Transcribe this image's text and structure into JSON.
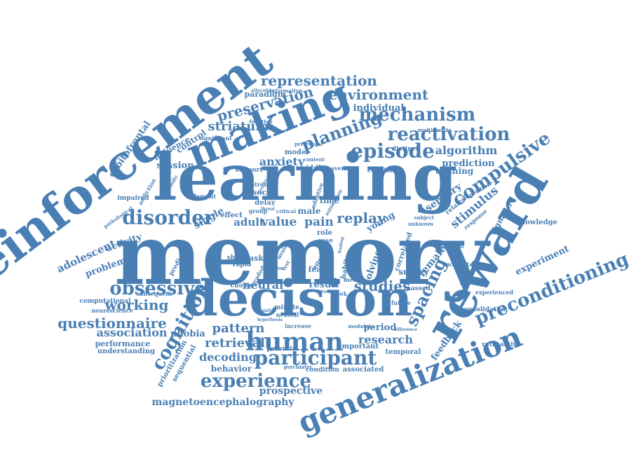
{
  "cloud": {
    "color": "#4a7fb4",
    "words": [
      {
        "text": "memory"
      },
      {
        "text": "learning"
      },
      {
        "text": "reinforcement"
      },
      {
        "text": "reward"
      },
      {
        "text": "decision"
      },
      {
        "text": "making"
      },
      {
        "text": "generalization"
      },
      {
        "text": "human"
      },
      {
        "text": "participant"
      },
      {
        "text": "episode"
      },
      {
        "text": "experience"
      },
      {
        "text": "obsessive"
      },
      {
        "text": "disorder"
      },
      {
        "text": "compulsive"
      },
      {
        "text": "preconditioning"
      },
      {
        "text": "cognition"
      },
      {
        "text": "spacing"
      },
      {
        "text": "reactivation"
      },
      {
        "text": "mechanism"
      },
      {
        "text": "planning"
      },
      {
        "text": "environment"
      },
      {
        "text": "representation"
      },
      {
        "text": "preservation"
      },
      {
        "text": "questionnaire"
      },
      {
        "text": "working"
      },
      {
        "text": "association"
      },
      {
        "text": "retrieval"
      },
      {
        "text": "pattern"
      },
      {
        "text": "decoding"
      },
      {
        "text": "studies"
      },
      {
        "text": "research"
      },
      {
        "text": "replay"
      },
      {
        "text": "value"
      },
      {
        "text": "pain"
      },
      {
        "text": "adult"
      },
      {
        "text": "neural"
      },
      {
        "text": "anxiety"
      },
      {
        "text": "striatum"
      },
      {
        "text": "algorithm"
      },
      {
        "text": "prediction"
      },
      {
        "text": "training"
      },
      {
        "text": "stimulus"
      },
      {
        "text": "sensory"
      },
      {
        "text": "magnetoencephalography"
      },
      {
        "text": "prospective"
      },
      {
        "text": "orbitofrontal"
      },
      {
        "text": "adolescent"
      },
      {
        "text": "problem"
      },
      {
        "text": "activity"
      },
      {
        "text": "session"
      },
      {
        "text": "influence"
      },
      {
        "text": "control"
      },
      {
        "text": "paradigm"
      },
      {
        "text": "individual"
      },
      {
        "text": "female"
      },
      {
        "text": "feedback"
      },
      {
        "text": "survey"
      },
      {
        "text": "period"
      },
      {
        "text": "behavior"
      },
      {
        "text": "performance"
      },
      {
        "text": "understanding"
      },
      {
        "text": "computational"
      },
      {
        "text": "neuroscience"
      },
      {
        "text": "subsequent"
      },
      {
        "text": "success"
      },
      {
        "text": "phobia"
      },
      {
        "text": "sequential"
      },
      {
        "text": "prioritization"
      },
      {
        "text": "experiment"
      },
      {
        "text": "knowledge"
      },
      {
        "text": "signature"
      },
      {
        "text": "consolidation"
      },
      {
        "text": "retroactive"
      },
      {
        "text": "experienced"
      },
      {
        "text": "temporal"
      },
      {
        "text": "associated"
      },
      {
        "text": "important"
      },
      {
        "text": "potential"
      },
      {
        "text": "condition"
      },
      {
        "text": "psychiatry"
      },
      {
        "text": "modulate"
      },
      {
        "text": "increase"
      },
      {
        "text": "minute"
      },
      {
        "text": "neutral"
      },
      {
        "text": "negative"
      },
      {
        "text": "choice"
      },
      {
        "text": "rapid"
      },
      {
        "text": "graded"
      },
      {
        "text": "task"
      },
      {
        "text": "short"
      },
      {
        "text": "single"
      },
      {
        "text": "effect"
      },
      {
        "text": "social"
      },
      {
        "text": "delay"
      },
      {
        "text": "group"
      },
      {
        "text": "critical"
      },
      {
        "text": "male"
      },
      {
        "text": "time"
      },
      {
        "text": "role"
      },
      {
        "text": "case"
      },
      {
        "text": "young"
      },
      {
        "text": "correlated"
      },
      {
        "text": "solving"
      },
      {
        "text": "habit"
      },
      {
        "text": "week"
      },
      {
        "text": "fear"
      },
      {
        "text": "aged"
      },
      {
        "text": "result"
      },
      {
        "text": "medial"
      },
      {
        "text": "massed"
      },
      {
        "text": "future"
      },
      {
        "text": "animal"
      },
      {
        "text": "incidental"
      },
      {
        "text": "response"
      },
      {
        "text": "repetition"
      },
      {
        "text": "related"
      },
      {
        "text": "unknown"
      },
      {
        "text": "subject"
      },
      {
        "text": "consistent"
      },
      {
        "text": "distinct"
      },
      {
        "text": "multivariate"
      },
      {
        "text": "aversive"
      },
      {
        "text": "middle"
      },
      {
        "text": "content"
      },
      {
        "text": "prefrontal"
      },
      {
        "text": "model"
      },
      {
        "text": "support"
      },
      {
        "text": "stronger"
      },
      {
        "text": "adaptive"
      },
      {
        "text": "estimation"
      },
      {
        "text": "psychiatric"
      },
      {
        "text": "element"
      },
      {
        "text": "impaired"
      },
      {
        "text": "addiction"
      },
      {
        "text": "pathological"
      },
      {
        "text": "predictive"
      },
      {
        "text": "episodic"
      },
      {
        "text": "significant"
      },
      {
        "text": "function"
      },
      {
        "text": "information"
      },
      {
        "text": "allocation"
      },
      {
        "text": "brain"
      },
      {
        "text": "test"
      },
      {
        "text": "threat"
      },
      {
        "text": "direction"
      },
      {
        "text": "hypothesis"
      },
      {
        "text": "difference"
      },
      {
        "text": "region"
      },
      {
        "text": "finding"
      },
      {
        "text": "anterior"
      }
    ]
  }
}
